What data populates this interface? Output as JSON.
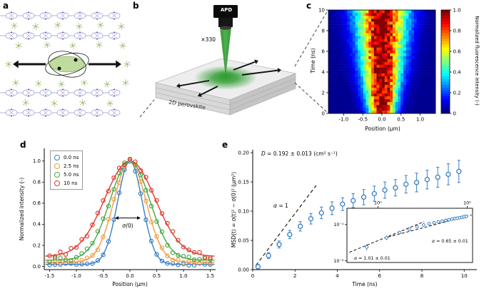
{
  "panels": {
    "a": {
      "label": "a"
    },
    "b": {
      "label": "b",
      "detector_label": "APD",
      "magnification_label": "×330",
      "substrate_label": "2D perovskite"
    },
    "c": {
      "label": "c",
      "xlabel": "Position (μm)",
      "ylabel": "Time (ns)",
      "colorbar_label": "Normalized fluorescence intensity (-)"
    },
    "d": {
      "label": "d",
      "xlabel": "Position (μm)",
      "ylabel": "Normalized intensity (-)",
      "sigma_annotation": "σ(0)"
    },
    "e": {
      "label": "e",
      "xlabel": "Time (ns)",
      "ylabel": "MSD(t) = σ(t)² − σ(0)² (μm²)",
      "diffusion_annotation": "D = 0.192 ± 0.013 (cm² s⁻¹)",
      "alpha_annotation": "α = 1",
      "inset": {
        "alpha_fit_early": "α = 1.01 ± 0.01",
        "alpha_fit_late": "α = 0.65 ± 0.01",
        "x_tick_labels": [
          "10⁰",
          "10¹"
        ],
        "y_tick_labels": [
          "10⁻¹",
          "10⁻²"
        ]
      }
    }
  },
  "chart_data": [
    {
      "panel": "c",
      "type": "heatmap",
      "xlabel": "Position (μm)",
      "ylabel": "Time (ns)",
      "colorbar_label": "Normalized fluorescence intensity (-)",
      "colormap": "jet",
      "x_range_um": [
        -1.4,
        1.4
      ],
      "time_range_ns": [
        0,
        10
      ],
      "z_range": [
        0,
        1
      ],
      "x_ticks": [
        -1.0,
        -0.5,
        0.0,
        0.5,
        1.0
      ],
      "x_tick_labels": [
        "-1.0",
        "-0.5",
        "0.0",
        "0.5",
        "1.0"
      ],
      "y_ticks": [
        0,
        2,
        4,
        6,
        8,
        10
      ],
      "y_tick_labels": [
        "0",
        "2",
        "4",
        "6",
        "8",
        "10"
      ],
      "colorbar_ticks": [
        0,
        0.2,
        0.4,
        0.6,
        0.8,
        1.0
      ],
      "colorbar_tick_labels": [
        "0",
        "0.2",
        "0.4",
        "0.6",
        "0.8",
        "1.0"
      ],
      "model": "each time row is a Gaussian fluorescence profile normalized to 1 at x=0; width grows with time",
      "sigma_start_um": 0.23,
      "sigma_end_um": 0.47
    },
    {
      "panel": "d",
      "type": "scatter",
      "model": "normalized Gaussian emission profiles at four delay times; open-circle data with solid Gaussian fits",
      "xlim": [
        -1.6,
        1.6
      ],
      "ylim": [
        -0.03,
        1.12
      ],
      "x_ticks": [
        -1.5,
        -1.0,
        -0.5,
        0.0,
        0.5,
        1.0,
        1.5
      ],
      "x_tick_labels": [
        "-1.5",
        "-1.0",
        "-0.5",
        "0.0",
        "0.5",
        "1.0",
        "1.5"
      ],
      "y_ticks": [
        0.0,
        0.2,
        0.4,
        0.6,
        0.8,
        1.0
      ],
      "y_tick_labels": [
        "0.0",
        "0.2",
        "0.4",
        "0.6",
        "0.8",
        "1.0"
      ],
      "marker_x_start": -1.5,
      "marker_x_end": 1.5,
      "marker_x_step": 0.1,
      "series": [
        {
          "name": "0.0 ns",
          "color": "#3b7fc4",
          "sigma_um": 0.23,
          "wing": 0.02,
          "noise": 0.018
        },
        {
          "name": "2.5 ns",
          "color": "#f49b3e",
          "sigma_um": 0.3,
          "wing": 0.04,
          "noise": 0.03
        },
        {
          "name": "5.0 ns",
          "color": "#48a848",
          "sigma_um": 0.37,
          "wing": 0.06,
          "noise": 0.04
        },
        {
          "name": "10 ns",
          "color": "#e03a30",
          "sigma_um": 0.47,
          "wing": 0.095,
          "noise": 0.05
        }
      ]
    },
    {
      "panel": "e",
      "type": "scatter",
      "marker_color": "#3b7fc4",
      "xlim": [
        0,
        10.6
      ],
      "ylim": [
        0,
        0.205
      ],
      "x_ticks": [
        0,
        2,
        4,
        6,
        8,
        10
      ],
      "x_tick_labels": [
        "0",
        "2",
        "4",
        "6",
        "8",
        "10"
      ],
      "y_ticks": [
        0.0,
        0.05,
        0.1,
        0.15,
        0.2
      ],
      "y_tick_labels": [
        "0.00",
        "0.05",
        "0.10",
        "0.15",
        "0.20"
      ],
      "t_ns": [
        0.25,
        0.75,
        1.25,
        1.75,
        2.25,
        2.75,
        3.25,
        3.75,
        4.25,
        4.75,
        5.25,
        5.75,
        6.25,
        6.75,
        7.25,
        7.75,
        8.25,
        8.75,
        9.25,
        9.75
      ],
      "msd_um2": [
        0.005,
        0.024,
        0.043,
        0.06,
        0.074,
        0.087,
        0.097,
        0.105,
        0.112,
        0.118,
        0.124,
        0.13,
        0.136,
        0.14,
        0.146,
        0.149,
        0.154,
        0.158,
        0.163,
        0.168
      ],
      "err_um2": [
        0.004,
        0.005,
        0.006,
        0.007,
        0.008,
        0.009,
        0.01,
        0.011,
        0.011,
        0.012,
        0.013,
        0.013,
        0.014,
        0.014,
        0.015,
        0.016,
        0.016,
        0.017,
        0.018,
        0.019
      ],
      "diffusion_coefficient": "0.192 ± 0.013 cm² s⁻¹",
      "fit_alpha1": {
        "slope_um2_per_ns": 0.048,
        "t_range": [
          0.15,
          3.0
        ]
      },
      "inset": {
        "xscale": "log",
        "yscale": "log",
        "xlim": [
          0.45,
          11.5
        ],
        "ylim": [
          0.009,
          0.28
        ],
        "x_ticks": [
          1,
          10
        ],
        "y_ticks": [
          0.1,
          0.01
        ],
        "fit_early": {
          "exponent": 1.01,
          "amp": 0.036,
          "t_range": [
            0.48,
            3.3
          ]
        },
        "fit_late": {
          "exponent": 0.65,
          "amp": 0.0381,
          "t_range": [
            1.3,
            11.2
          ]
        }
      }
    }
  ]
}
